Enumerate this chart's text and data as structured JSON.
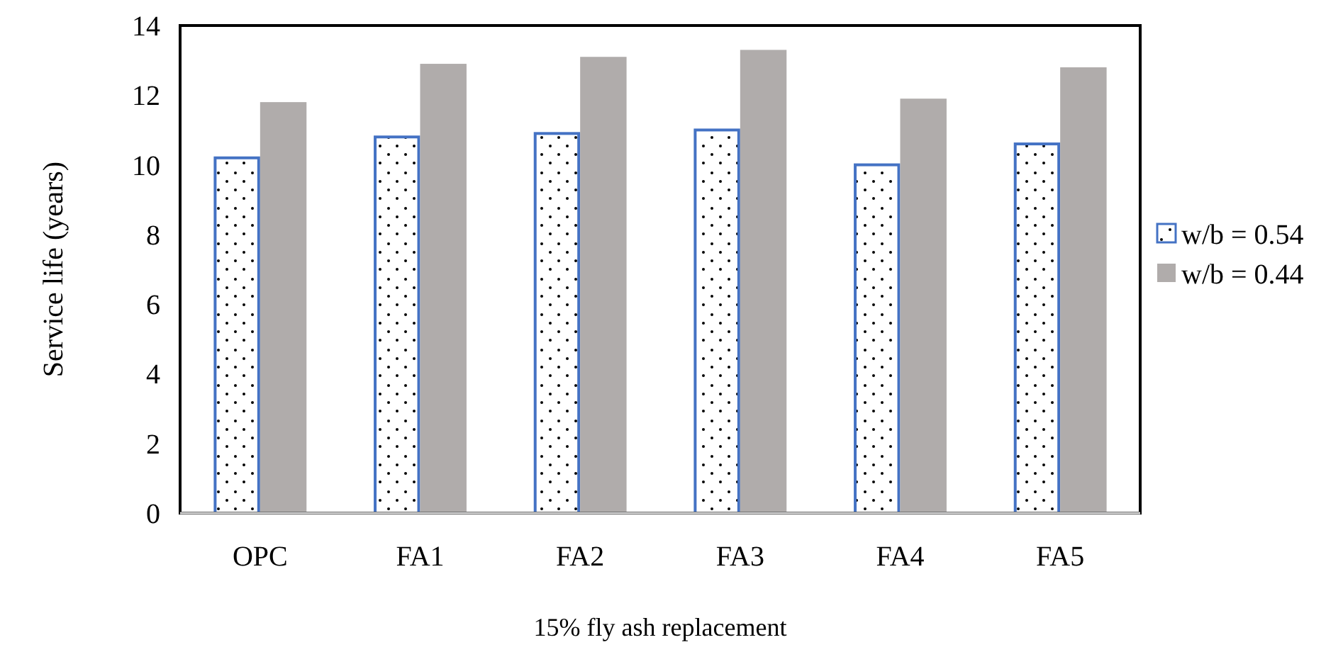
{
  "chart_data": {
    "type": "bar",
    "xlabel": "15% fly ash replacement",
    "ylabel": "Service life (years)",
    "categories": [
      "OPC",
      "FA1",
      "FA2",
      "FA3",
      "FA4",
      "FA5"
    ],
    "series": [
      {
        "name": "w/b = 0.54",
        "color": "#4472c4",
        "values": [
          10.2,
          10.8,
          10.9,
          11.0,
          10.0,
          10.6
        ]
      },
      {
        "name": "w/b = 0.44",
        "color": "#b0acab",
        "values": [
          11.8,
          12.9,
          13.1,
          13.3,
          11.9,
          12.8
        ]
      }
    ],
    "ylim": [
      0,
      14
    ],
    "yticks": [
      0,
      2,
      4,
      6,
      8,
      10,
      12,
      14
    ],
    "grid": false,
    "legend": "right"
  }
}
